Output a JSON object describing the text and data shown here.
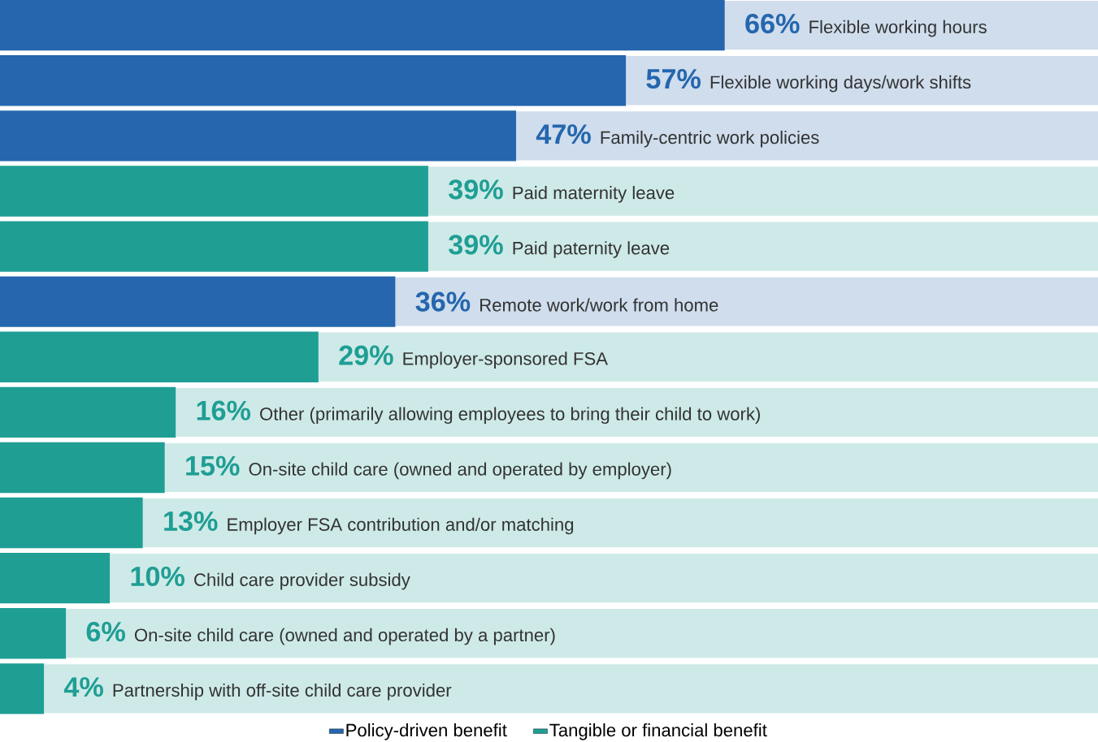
{
  "chart_data": {
    "type": "bar",
    "orientation": "horizontal",
    "xlim": [
      0,
      100
    ],
    "legend": "bottom",
    "categories": [
      "Flexible working hours",
      "Flexible working days/work shifts",
      "Family-centric work policies",
      "Paid maternity leave",
      "Paid paternity leave",
      "Remote work/work from home",
      "Employer-sponsored FSA",
      "Other (primarily allowing employees to bring their child to work)",
      "On-site child care (owned and operated by employer)",
      "Employer FSA contribution and/or matching",
      "Child care provider subsidy",
      "On-site child care (owned and operated by a partner)",
      "Partnership with off-site child care provider"
    ],
    "series": [
      {
        "name": "Policy-driven benefit",
        "color": "#2566ae",
        "values": [
          66,
          57,
          47,
          null,
          null,
          36,
          null,
          null,
          null,
          null,
          null,
          null,
          null
        ],
        "value_labels": [
          "66%",
          "57%",
          "47%",
          null,
          null,
          "36%",
          null,
          null,
          null,
          null,
          null,
          null,
          null
        ]
      },
      {
        "name": "Tangible or financial benefit",
        "color": "#1f9e94",
        "values": [
          null,
          null,
          null,
          39,
          39,
          null,
          29,
          16,
          15,
          13,
          10,
          6,
          4
        ],
        "value_labels": [
          null,
          null,
          null,
          "39%",
          "39%",
          null,
          "29%",
          "16%",
          "15%",
          "13%",
          "10%",
          "6%",
          "4%"
        ]
      }
    ]
  }
}
